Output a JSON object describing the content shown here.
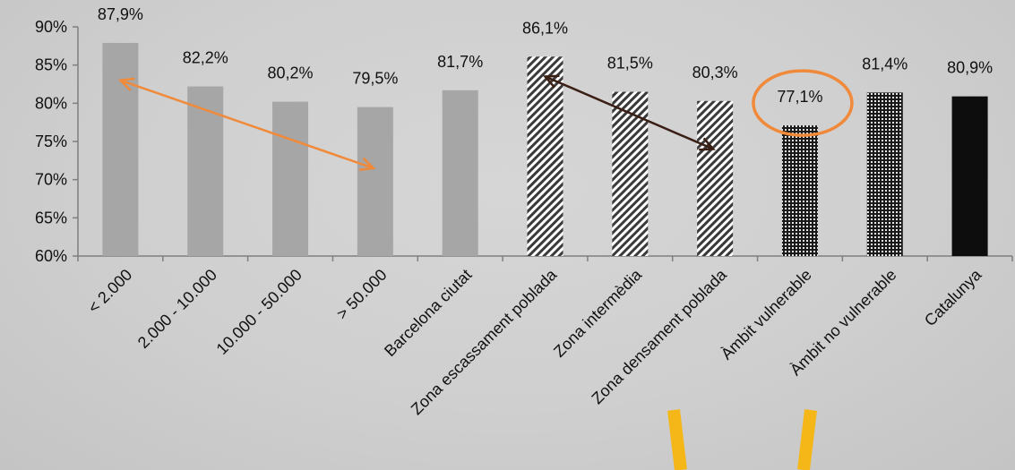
{
  "chart_data": {
    "type": "bar",
    "categories": [
      "< 2.000",
      "2.000 - 10.000",
      "10.000 - 50.000",
      "> 50.000",
      "Barcelona ciutat",
      "Zona escassament poblada",
      "Zona  intermèdia",
      "Zona densament poblada",
      "Àmbit vulnerable",
      "Àmbit no vulnerable",
      "Catalunya"
    ],
    "values": [
      87.9,
      82.2,
      80.2,
      79.5,
      81.7,
      86.1,
      81.5,
      80.3,
      77.1,
      81.4,
      80.9
    ],
    "value_labels": [
      "87,9%",
      "82,2%",
      "80,2%",
      "79,5%",
      "81,7%",
      "86,1%",
      "81,5%",
      "80,3%",
      "77,1%",
      "81,4%",
      "80,9%"
    ],
    "fill_styles": [
      "solid-gray",
      "solid-gray",
      "solid-gray",
      "solid-gray",
      "solid-gray",
      "diagonal-hatch",
      "diagonal-hatch",
      "diagonal-hatch",
      "dotted",
      "dotted",
      "solid-black"
    ],
    "ylim": [
      60,
      90
    ],
    "yticks": [
      60,
      65,
      70,
      75,
      80,
      85,
      90
    ],
    "ytick_labels": [
      "60%",
      "65%",
      "70%",
      "75%",
      "80%",
      "85%",
      "90%"
    ],
    "title": "",
    "xlabel": "",
    "ylabel": "",
    "grid": false,
    "colors": {
      "solid_gray": "#a6a6a6",
      "black": "#0d0d0d",
      "axis": "#7f7f7f",
      "orange": "#f08a3a",
      "brown": "#3a1f14",
      "yellow": "#f5b617"
    },
    "annotations": [
      {
        "type": "double-arrow",
        "color": "orange",
        "from": {
          "category": 0,
          "value": 83.0
        },
        "to": {
          "category": 3,
          "value": 71.5
        }
      },
      {
        "type": "double-arrow",
        "color": "brown",
        "from": {
          "category": 5,
          "value": 83.5
        },
        "to": {
          "category": 7,
          "value": 74.0
        }
      },
      {
        "type": "ellipse-highlight",
        "color": "orange",
        "category": 8
      }
    ]
  }
}
